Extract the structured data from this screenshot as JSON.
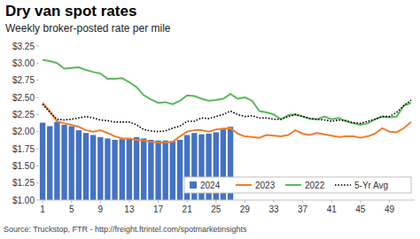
{
  "chart_data": {
    "type": "bar",
    "title": "Dry van spot rates",
    "subtitle": "Weekly broker-posted rate per mile",
    "source": "Source: Truckstop, FTR - http://freight.ftrintel.com/spotmarketinsights",
    "categories": [
      "1",
      null,
      null,
      null,
      "5",
      null,
      null,
      null,
      "9",
      null,
      null,
      null,
      "13",
      null,
      null,
      null,
      "17",
      null,
      null,
      null,
      "21",
      null,
      null,
      null,
      "25",
      null,
      null,
      null,
      "29",
      null,
      null,
      null,
      "33",
      null,
      null,
      null,
      "37",
      null,
      null,
      null,
      "41",
      null,
      null,
      null,
      "45",
      null,
      null,
      null,
      "49",
      null,
      null,
      null
    ],
    "series": [
      {
        "name": "2024",
        "type": "bar",
        "color": "#4472c4",
        "values": [
          2.13,
          2.08,
          2.14,
          2.1,
          2.08,
          2.02,
          1.98,
          1.95,
          1.92,
          1.9,
          1.88,
          1.89,
          1.9,
          1.92,
          1.9,
          1.88,
          1.87,
          1.87,
          1.86,
          1.88,
          1.95,
          1.98,
          1.96,
          1.97,
          1.99,
          2.05,
          2.07,
          null,
          null,
          null,
          null,
          null,
          null,
          null,
          null,
          null,
          null,
          null,
          null,
          null,
          null,
          null,
          null,
          null,
          null,
          null,
          null,
          null,
          null,
          null,
          null,
          null
        ]
      },
      {
        "name": "2023",
        "type": "line",
        "color": "#ed7d31",
        "line_style": "solid",
        "values": [
          2.42,
          2.3,
          2.15,
          2.12,
          2.1,
          2.07,
          2.02,
          2.0,
          2.02,
          1.98,
          1.93,
          1.9,
          1.9,
          1.88,
          1.87,
          1.85,
          1.84,
          1.84,
          1.85,
          1.93,
          2.0,
          2.02,
          2.02,
          2.0,
          2.03,
          2.04,
          2.05,
          1.97,
          1.93,
          1.92,
          1.91,
          1.95,
          1.94,
          1.93,
          1.95,
          2.02,
          1.97,
          1.95,
          1.98,
          1.96,
          1.94,
          1.92,
          1.93,
          1.93,
          1.91,
          1.93,
          1.97,
          2.05,
          2.0,
          1.99,
          2.05,
          2.14
        ]
      },
      {
        "name": "2022",
        "type": "line",
        "color": "#5cb85c",
        "line_style": "solid",
        "values": [
          3.05,
          3.03,
          3.0,
          2.92,
          2.93,
          2.94,
          2.9,
          2.87,
          2.85,
          2.77,
          2.77,
          2.78,
          2.72,
          2.65,
          2.53,
          2.47,
          2.42,
          2.43,
          2.4,
          2.45,
          2.53,
          2.52,
          2.48,
          2.45,
          2.46,
          2.48,
          2.55,
          2.48,
          2.5,
          2.45,
          2.3,
          2.28,
          2.25,
          2.18,
          2.24,
          2.25,
          2.22,
          2.19,
          2.18,
          2.22,
          2.18,
          2.2,
          2.15,
          2.12,
          2.1,
          2.12,
          2.18,
          2.22,
          2.21,
          2.22,
          2.38,
          2.42
        ]
      },
      {
        "name": "5-Yr Avg",
        "type": "line",
        "color": "#000000",
        "line_style": "dotted",
        "values": [
          2.4,
          2.28,
          2.18,
          2.17,
          2.18,
          2.2,
          2.22,
          2.2,
          2.17,
          2.16,
          2.14,
          2.14,
          2.14,
          2.1,
          2.03,
          2.01,
          2.0,
          2.01,
          2.05,
          2.08,
          2.15,
          2.15,
          2.2,
          2.19,
          2.22,
          2.25,
          2.3,
          2.25,
          2.22,
          2.23,
          2.2,
          2.2,
          2.18,
          2.18,
          2.22,
          2.25,
          2.22,
          2.19,
          2.18,
          2.17,
          2.15,
          2.17,
          2.16,
          2.13,
          2.12,
          2.15,
          2.18,
          2.22,
          2.22,
          2.28,
          2.38,
          2.46
        ]
      }
    ],
    "ylim": [
      1.0,
      3.25
    ],
    "yticks": [
      {
        "value": 1.0,
        "label": "$1.00"
      },
      {
        "value": 1.25,
        "label": "$1.25"
      },
      {
        "value": 1.5,
        "label": "$1.50"
      },
      {
        "value": 1.75,
        "label": "$1.75"
      },
      {
        "value": 2.0,
        "label": "$2.00"
      },
      {
        "value": 2.25,
        "label": "$2.25"
      },
      {
        "value": 2.5,
        "label": "$2.50"
      },
      {
        "value": 2.75,
        "label": "$2.75"
      },
      {
        "value": 3.0,
        "label": "$3.00"
      },
      {
        "value": 3.25,
        "label": "$3.25"
      }
    ],
    "grid": false,
    "legend": "lower right"
  }
}
